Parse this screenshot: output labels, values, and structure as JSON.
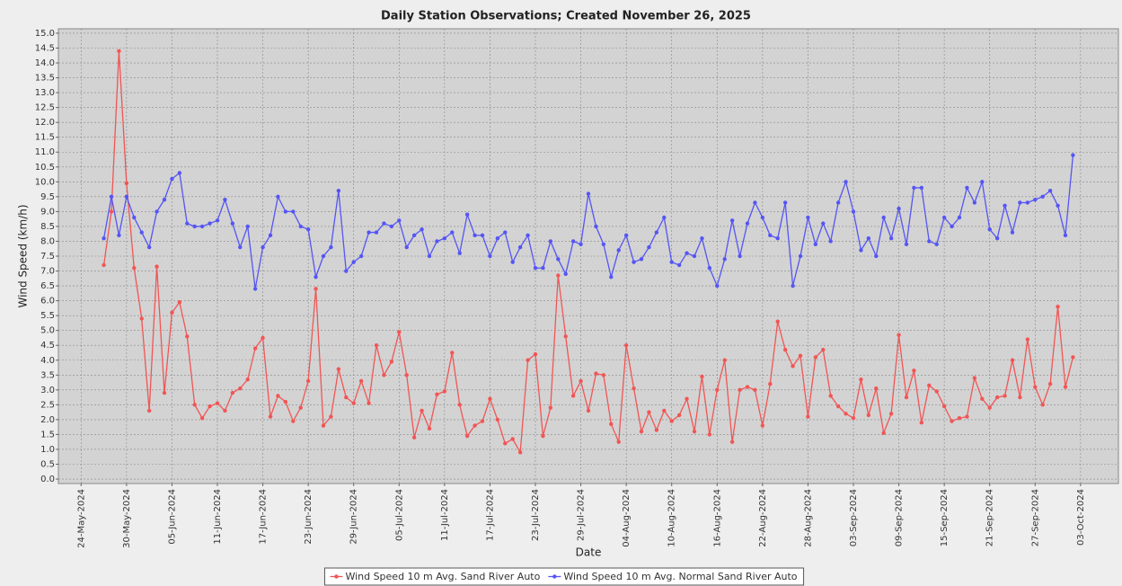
{
  "chart_data": {
    "type": "line",
    "title": "Daily Station Observations; Created November 26, 2025",
    "xlabel": "Date",
    "ylabel": "Wind Speed (km/h)",
    "x": [
      "2024-05-27",
      "2024-05-28",
      "2024-05-29",
      "2024-05-30",
      "2024-05-31",
      "2024-06-01",
      "2024-06-02",
      "2024-06-03",
      "2024-06-04",
      "2024-06-05",
      "2024-06-06",
      "2024-06-07",
      "2024-06-08",
      "2024-06-09",
      "2024-06-10",
      "2024-06-11",
      "2024-06-12",
      "2024-06-13",
      "2024-06-14",
      "2024-06-15",
      "2024-06-16",
      "2024-06-17",
      "2024-06-18",
      "2024-06-19",
      "2024-06-20",
      "2024-06-21",
      "2024-06-22",
      "2024-06-23",
      "2024-06-24",
      "2024-06-25",
      "2024-06-26",
      "2024-06-27",
      "2024-06-28",
      "2024-06-29",
      "2024-06-30",
      "2024-07-01",
      "2024-07-02",
      "2024-07-03",
      "2024-07-04",
      "2024-07-05",
      "2024-07-06",
      "2024-07-07",
      "2024-07-08",
      "2024-07-09",
      "2024-07-10",
      "2024-07-11",
      "2024-07-12",
      "2024-07-13",
      "2024-07-14",
      "2024-07-15",
      "2024-07-16",
      "2024-07-17",
      "2024-07-18",
      "2024-07-19",
      "2024-07-20",
      "2024-07-21",
      "2024-07-22",
      "2024-07-23",
      "2024-07-24",
      "2024-07-25",
      "2024-07-26",
      "2024-07-27",
      "2024-07-28",
      "2024-07-29",
      "2024-07-30",
      "2024-07-31",
      "2024-08-01",
      "2024-08-02",
      "2024-08-03",
      "2024-08-04",
      "2024-08-05",
      "2024-08-06",
      "2024-08-07",
      "2024-08-08",
      "2024-08-09",
      "2024-08-10",
      "2024-08-11",
      "2024-08-12",
      "2024-08-13",
      "2024-08-14",
      "2024-08-15",
      "2024-08-16",
      "2024-08-17",
      "2024-08-18",
      "2024-08-19",
      "2024-08-20",
      "2024-08-21",
      "2024-08-22",
      "2024-08-23",
      "2024-08-24",
      "2024-08-25",
      "2024-08-26",
      "2024-08-27",
      "2024-08-28",
      "2024-08-29",
      "2024-08-30",
      "2024-08-31",
      "2024-09-01",
      "2024-09-02",
      "2024-09-03",
      "2024-09-04",
      "2024-09-05",
      "2024-09-06",
      "2024-09-07",
      "2024-09-08",
      "2024-09-09",
      "2024-09-10",
      "2024-09-11",
      "2024-09-12",
      "2024-09-13",
      "2024-09-14",
      "2024-09-15",
      "2024-09-16",
      "2024-09-17",
      "2024-09-18",
      "2024-09-19",
      "2024-09-20",
      "2024-09-21",
      "2024-09-22",
      "2024-09-23",
      "2024-09-24",
      "2024-09-25",
      "2024-09-26",
      "2024-09-27",
      "2024-09-28",
      "2024-09-29",
      "2024-09-30",
      "2024-10-01",
      "2024-10-02"
    ],
    "series": [
      {
        "name": "Wind Speed 10 m Avg. Sand River Auto",
        "color": "#f25555",
        "values": [
          7.2,
          9.0,
          14.4,
          9.95,
          7.1,
          5.4,
          2.3,
          7.15,
          2.9,
          5.6,
          5.95,
          4.8,
          2.5,
          2.05,
          2.45,
          2.55,
          2.3,
          2.9,
          3.05,
          3.35,
          4.4,
          4.75,
          2.1,
          2.8,
          2.6,
          1.95,
          2.4,
          3.3,
          6.4,
          1.8,
          2.1,
          3.7,
          2.75,
          2.55,
          3.3,
          2.55,
          4.5,
          3.5,
          3.95,
          4.95,
          3.5,
          1.4,
          2.3,
          1.7,
          2.85,
          2.95,
          4.25,
          2.5,
          1.45,
          1.8,
          1.95,
          2.7,
          2.0,
          1.2,
          1.35,
          0.9,
          4.0,
          4.2,
          1.45,
          2.4,
          6.85,
          4.8,
          2.8,
          3.3,
          2.3,
          3.55,
          3.5,
          1.85,
          1.25,
          4.5,
          3.05,
          1.6,
          2.25,
          1.65,
          2.3,
          1.95,
          2.15,
          2.7,
          1.6,
          3.45,
          1.5,
          3.0,
          4.0,
          1.25,
          3.0,
          3.1,
          3.0,
          1.8,
          3.2,
          5.3,
          4.35,
          3.8,
          4.15,
          2.1,
          4.1,
          4.35,
          2.8,
          2.45,
          2.2,
          2.05,
          3.35,
          2.15,
          3.05,
          1.55,
          2.2,
          4.85,
          2.75,
          3.65,
          1.9,
          3.15,
          2.95,
          2.45,
          1.95,
          2.05,
          2.1,
          3.4,
          2.7,
          2.4,
          2.75,
          2.8,
          4.0,
          2.75,
          4.7,
          3.1,
          2.5,
          3.2,
          5.8,
          3.1,
          4.1
        ]
      },
      {
        "name": "Wind Speed 10 m Avg. Normal Sand River Auto",
        "color": "#5555f5",
        "values": [
          8.1,
          9.5,
          8.2,
          9.5,
          8.8,
          8.3,
          7.8,
          9.0,
          9.4,
          10.1,
          10.3,
          8.6,
          8.5,
          8.5,
          8.6,
          8.7,
          9.4,
          8.6,
          7.8,
          8.5,
          6.4,
          7.8,
          8.2,
          9.5,
          9.0,
          9.0,
          8.5,
          8.4,
          6.8,
          7.5,
          7.8,
          9.7,
          7.0,
          7.3,
          7.5,
          8.3,
          8.3,
          8.6,
          8.5,
          8.7,
          7.8,
          8.2,
          8.4,
          7.5,
          8.0,
          8.1,
          8.3,
          7.6,
          8.9,
          8.2,
          8.2,
          7.5,
          8.1,
          8.3,
          7.3,
          7.8,
          8.2,
          7.1,
          7.1,
          8.0,
          7.4,
          6.9,
          8.0,
          7.9,
          9.6,
          8.5,
          7.9,
          6.8,
          7.7,
          8.2,
          7.3,
          7.4,
          7.8,
          8.3,
          8.8,
          7.3,
          7.2,
          7.6,
          7.5,
          8.1,
          7.1,
          6.5,
          7.4,
          8.7,
          7.5,
          8.6,
          9.3,
          8.8,
          8.2,
          8.1,
          9.3,
          6.5,
          7.5,
          8.8,
          7.9,
          8.6,
          8.0,
          9.3,
          10.0,
          9.0,
          7.7,
          8.1,
          7.5,
          8.8,
          8.1,
          9.1,
          7.9,
          9.8,
          9.8,
          8.0,
          7.9,
          8.8,
          8.5,
          8.8,
          9.8,
          9.3,
          10.0,
          8.4,
          8.1,
          9.2,
          8.3,
          9.3,
          9.3,
          9.4,
          9.5,
          9.7,
          9.2,
          8.2,
          10.9
        ]
      }
    ],
    "xlim": [
      "2024-05-21",
      "2024-10-08"
    ],
    "xticks": [
      {
        "value": "2024-05-24",
        "label": "24-May-2024"
      },
      {
        "value": "2024-05-30",
        "label": "30-May-2024"
      },
      {
        "value": "2024-06-05",
        "label": "05-Jun-2024"
      },
      {
        "value": "2024-06-11",
        "label": "11-Jun-2024"
      },
      {
        "value": "2024-06-17",
        "label": "17-Jun-2024"
      },
      {
        "value": "2024-06-23",
        "label": "23-Jun-2024"
      },
      {
        "value": "2024-06-29",
        "label": "29-Jun-2024"
      },
      {
        "value": "2024-07-05",
        "label": "05-Jul-2024"
      },
      {
        "value": "2024-07-11",
        "label": "11-Jul-2024"
      },
      {
        "value": "2024-07-17",
        "label": "17-Jul-2024"
      },
      {
        "value": "2024-07-23",
        "label": "23-Jul-2024"
      },
      {
        "value": "2024-07-29",
        "label": "29-Jul-2024"
      },
      {
        "value": "2024-08-04",
        "label": "04-Aug-2024"
      },
      {
        "value": "2024-08-10",
        "label": "10-Aug-2024"
      },
      {
        "value": "2024-08-16",
        "label": "16-Aug-2024"
      },
      {
        "value": "2024-08-22",
        "label": "22-Aug-2024"
      },
      {
        "value": "2024-08-28",
        "label": "28-Aug-2024"
      },
      {
        "value": "2024-09-03",
        "label": "03-Sep-2024"
      },
      {
        "value": "2024-09-09",
        "label": "09-Sep-2024"
      },
      {
        "value": "2024-09-15",
        "label": "15-Sep-2024"
      },
      {
        "value": "2024-09-21",
        "label": "21-Sep-2024"
      },
      {
        "value": "2024-09-27",
        "label": "27-Sep-2024"
      },
      {
        "value": "2024-10-03",
        "label": "03-Oct-2024"
      }
    ],
    "ylim": [
      -0.15,
      15.15
    ],
    "yticks": [
      {
        "value": 0,
        "label": "0.0"
      },
      0.5,
      {
        "value": 1,
        "label": "1.0"
      },
      1.5,
      {
        "value": 2,
        "label": "2.0"
      },
      2.5,
      {
        "value": 3,
        "label": "3.0"
      },
      3.5,
      {
        "value": 4,
        "label": "4.0"
      },
      4.5,
      {
        "value": 5,
        "label": "5.0"
      },
      5.5,
      {
        "value": 6,
        "label": "6.0"
      },
      6.5,
      {
        "value": 7,
        "label": "7.0"
      },
      7.5,
      {
        "value": 8,
        "label": "8.0"
      },
      8.5,
      {
        "value": 9,
        "label": "9.0"
      },
      9.5,
      {
        "value": 10,
        "label": "10.0"
      },
      10.5,
      {
        "value": 11,
        "label": "11.0"
      },
      11.5,
      {
        "value": 12,
        "label": "12.0"
      },
      12.5,
      {
        "value": 13,
        "label": "13.0"
      },
      13.5,
      {
        "value": 14,
        "label": "14.0"
      },
      14.5,
      {
        "value": 15,
        "label": "15.0"
      }
    ],
    "grid": true,
    "legend": "bottom"
  }
}
